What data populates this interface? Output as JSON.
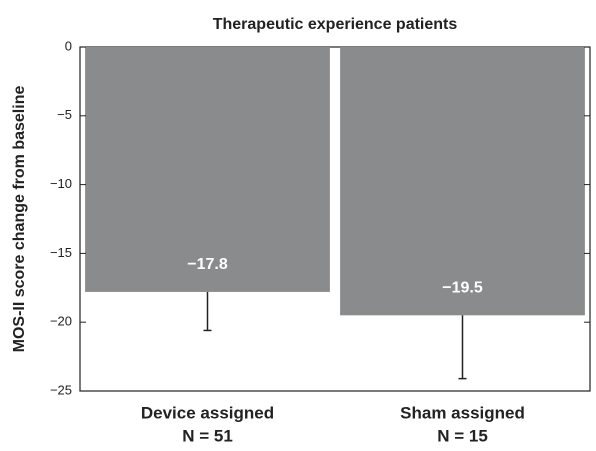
{
  "chart_data": {
    "type": "bar",
    "title": "Therapeutic experience patients",
    "y_label": "MOS-II score change from baseline",
    "categories": [
      "Device assigned",
      "Sham assigned"
    ],
    "n_labels": [
      "N = 51",
      "N = 15"
    ],
    "values": [
      -17.8,
      -19.5
    ],
    "value_labels": [
      "−17.8",
      "−19.5"
    ],
    "errors": [
      2.8,
      4.6
    ],
    "color": "#8a8b8d",
    "ylim": [
      -25,
      0
    ],
    "yticks": [
      0,
      {
        "value": -5,
        "label": "−5"
      },
      {
        "value": -10,
        "label": "−10"
      },
      {
        "value": -15,
        "label": "−15"
      },
      {
        "value": -20,
        "label": "−20"
      },
      {
        "value": -25,
        "label": "−25"
      }
    ]
  }
}
